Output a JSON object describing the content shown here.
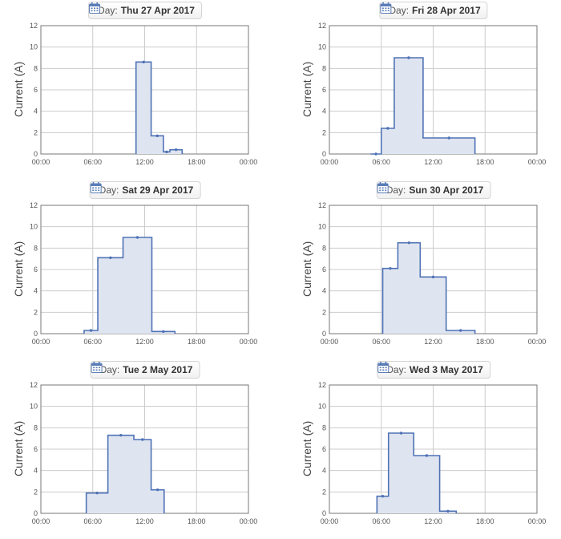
{
  "day_label": "Day:",
  "colors": {
    "line": "#4f72b6",
    "fill": "#dfe5f0",
    "grid": "#cccccc",
    "axis": "#777777"
  },
  "chart_data": [
    {
      "type": "area",
      "date": "Thu 27 Apr 2017",
      "ylabel": "Current (A)",
      "xlim": [
        "00:00",
        "24:00"
      ],
      "ylim": [
        0,
        12
      ],
      "x_ticks": [
        "00:00",
        "06:00",
        "12:00",
        "18:00",
        "00:00"
      ],
      "y_ticks": [
        0,
        2,
        4,
        6,
        8,
        10,
        12
      ],
      "steps": [
        {
          "start": "11:00",
          "end": "12:45",
          "value": 8.6
        },
        {
          "start": "12:45",
          "end": "14:10",
          "value": 1.7
        },
        {
          "start": "14:10",
          "end": "14:55",
          "value": 0.2
        },
        {
          "start": "14:55",
          "end": "16:20",
          "value": 0.4
        }
      ]
    },
    {
      "type": "area",
      "date": "Fri 28 Apr 2017",
      "ylabel": "Current (A)",
      "xlim": [
        "00:00",
        "24:00"
      ],
      "ylim": [
        0,
        12
      ],
      "x_ticks": [
        "00:00",
        "06:00",
        "12:00",
        "18:00",
        "00:00"
      ],
      "y_ticks": [
        0,
        2,
        4,
        6,
        8,
        10,
        12
      ],
      "steps": [
        {
          "start": "04:45",
          "end": "06:00",
          "value": 0.0
        },
        {
          "start": "06:00",
          "end": "07:30",
          "value": 2.4
        },
        {
          "start": "07:30",
          "end": "10:50",
          "value": 9.0
        },
        {
          "start": "10:50",
          "end": "16:50",
          "value": 1.5
        }
      ]
    },
    {
      "type": "area",
      "date": "Sat 29 Apr 2017",
      "ylabel": "Current (A)",
      "xlim": [
        "00:00",
        "24:00"
      ],
      "ylim": [
        0,
        12
      ],
      "x_ticks": [
        "00:00",
        "06:00",
        "12:00",
        "18:00",
        "00:00"
      ],
      "y_ticks": [
        0,
        2,
        4,
        6,
        8,
        10,
        12
      ],
      "steps": [
        {
          "start": "05:00",
          "end": "06:35",
          "value": 0.3
        },
        {
          "start": "06:35",
          "end": "09:30",
          "value": 7.1
        },
        {
          "start": "09:30",
          "end": "12:50",
          "value": 9.0
        },
        {
          "start": "12:50",
          "end": "15:30",
          "value": 0.2
        }
      ]
    },
    {
      "type": "area",
      "date": "Sun 30 Apr 2017",
      "ylabel": "Current (A)",
      "xlim": [
        "00:00",
        "24:00"
      ],
      "ylim": [
        0,
        12
      ],
      "x_ticks": [
        "00:00",
        "06:00",
        "12:00",
        "18:00",
        "00:00"
      ],
      "y_ticks": [
        0,
        2,
        4,
        6,
        8,
        10,
        12
      ],
      "steps": [
        {
          "start": "06:10",
          "end": "07:55",
          "value": 6.1
        },
        {
          "start": "07:55",
          "end": "10:30",
          "value": 8.5
        },
        {
          "start": "10:30",
          "end": "13:30",
          "value": 5.3
        },
        {
          "start": "13:30",
          "end": "16:50",
          "value": 0.3
        }
      ]
    },
    {
      "type": "area",
      "date": "Tue 2 May 2017",
      "ylabel": "Current (A)",
      "xlim": [
        "00:00",
        "24:00"
      ],
      "ylim": [
        0,
        12
      ],
      "x_ticks": [
        "00:00",
        "06:00",
        "12:00",
        "18:00",
        "00:00"
      ],
      "y_ticks": [
        0,
        2,
        4,
        6,
        8,
        10,
        12
      ],
      "steps": [
        {
          "start": "05:15",
          "end": "07:45",
          "value": 1.9
        },
        {
          "start": "07:45",
          "end": "10:45",
          "value": 7.3
        },
        {
          "start": "10:45",
          "end": "12:45",
          "value": 6.9
        },
        {
          "start": "12:45",
          "end": "14:15",
          "value": 2.2
        }
      ]
    },
    {
      "type": "area",
      "date": "Wed 3 May 2017",
      "ylabel": "Current (A)",
      "xlim": [
        "00:00",
        "24:00"
      ],
      "ylim": [
        0,
        12
      ],
      "x_ticks": [
        "00:00",
        "06:00",
        "12:00",
        "18:00",
        "00:00"
      ],
      "y_ticks": [
        0,
        2,
        4,
        6,
        8,
        10,
        12
      ],
      "steps": [
        {
          "start": "05:30",
          "end": "06:50",
          "value": 1.6
        },
        {
          "start": "06:50",
          "end": "09:45",
          "value": 7.5
        },
        {
          "start": "09:45",
          "end": "12:45",
          "value": 5.4
        },
        {
          "start": "12:45",
          "end": "14:40",
          "value": 0.2
        }
      ]
    }
  ]
}
